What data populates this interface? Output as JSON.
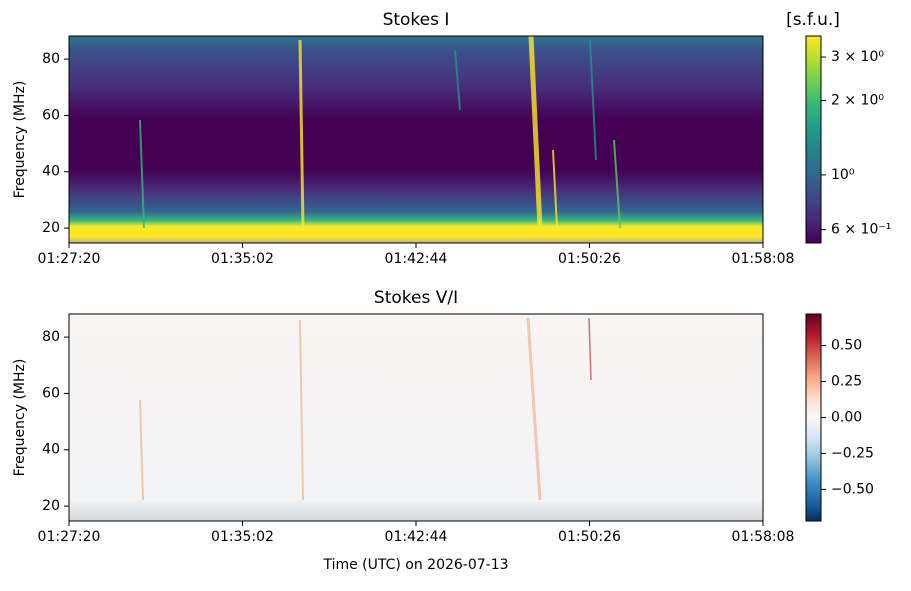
{
  "chart_data": [
    {
      "type": "spectrogram",
      "title": "Stokes I",
      "ylabel": "Frequency (MHz)",
      "xlim": [
        "01:27:20",
        "01:58:08"
      ],
      "xticks": [
        "01:27:20",
        "01:35:02",
        "01:42:44",
        "01:50:26",
        "01:58:08"
      ],
      "ylim": [
        14.7,
        88.2
      ],
      "yticks": [
        20,
        40,
        60,
        80
      ],
      "colorbar": {
        "label": "[s.f.u.]",
        "scale": "log",
        "cmap": "viridis",
        "lim": [
          0.53,
          3.65
        ],
        "ticks": [
          {
            "value": 3,
            "label": "3 × 10⁰"
          },
          {
            "value": 2,
            "label": "2 × 10⁰"
          },
          {
            "value": 1,
            "label": "10⁰"
          },
          {
            "value": 0.6,
            "label": "6 × 10⁻¹"
          }
        ]
      }
    },
    {
      "type": "spectrogram",
      "title": "Stokes V/I",
      "ylabel": "Frequency (MHz)",
      "xlabel": "Time (UTC) on 2026-07-13",
      "xlim": [
        "01:27:20",
        "01:58:08"
      ],
      "xticks": [
        "01:27:20",
        "01:35:02",
        "01:42:44",
        "01:50:26",
        "01:58:08"
      ],
      "ylim": [
        14.7,
        88.2
      ],
      "yticks": [
        20,
        40,
        60,
        80
      ],
      "colorbar": {
        "scale": "linear",
        "cmap": "RdBu_r",
        "lim": [
          -0.72,
          0.72
        ],
        "ticks": [
          {
            "value": 0.5,
            "label": "0.50"
          },
          {
            "value": 0.25,
            "label": "0.25"
          },
          {
            "value": 0,
            "label": "0.00"
          },
          {
            "value": -0.25,
            "label": "−0.25"
          },
          {
            "value": -0.5,
            "label": "−0.50"
          }
        ]
      }
    }
  ]
}
